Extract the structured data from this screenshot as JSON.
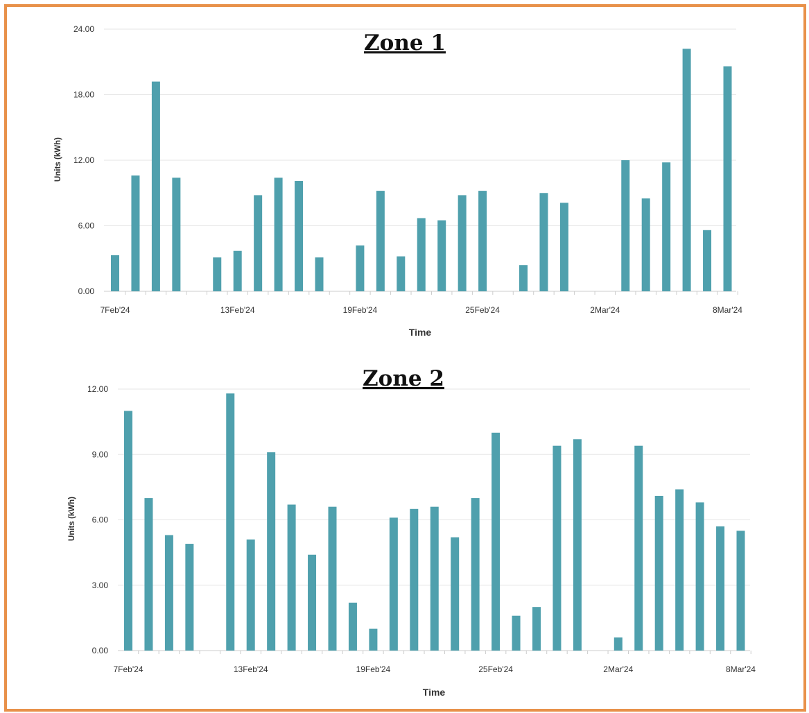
{
  "colors": {
    "bar": "#4fa0ad",
    "grid": "#e6e6e6",
    "frame": "#e8914a"
  },
  "chart_data": [
    {
      "type": "bar",
      "title": "Zone 1",
      "xlabel": "Time",
      "ylabel": "Units (kWh)",
      "ylim": [
        0,
        24
      ],
      "yticks": [
        "0.00",
        "6.00",
        "12.00",
        "18.00",
        "24.00"
      ],
      "xtick_labels": [
        "7Feb'24",
        "13Feb'24",
        "19Feb'24",
        "25Feb'24",
        "2Mar'24",
        "8Mar'24"
      ],
      "grid": true,
      "categories": [
        "7Feb'24",
        "8Feb'24",
        "9Feb'24",
        "10Feb'24",
        "11Feb'24",
        "12Feb'24",
        "13Feb'24",
        "14Feb'24",
        "15Feb'24",
        "16Feb'24",
        "17Feb'24",
        "18Feb'24",
        "19Feb'24",
        "20Feb'24",
        "21Feb'24",
        "22Feb'24",
        "23Feb'24",
        "24Feb'24",
        "25Feb'24",
        "26Feb'24",
        "27Feb'24",
        "28Feb'24",
        "29Feb'24",
        "1Mar'24",
        "2Mar'24",
        "3Mar'24",
        "4Mar'24",
        "5Mar'24",
        "6Mar'24",
        "7Mar'24",
        "8Mar'24"
      ],
      "values": [
        3.3,
        10.6,
        19.2,
        10.4,
        0,
        3.1,
        3.7,
        8.8,
        10.4,
        10.1,
        3.1,
        0,
        4.2,
        9.2,
        3.2,
        6.7,
        6.5,
        8.8,
        9.2,
        0,
        2.4,
        9.0,
        8.1,
        0,
        0,
        12.0,
        8.5,
        11.8,
        22.2,
        5.6,
        20.6
      ]
    },
    {
      "type": "bar",
      "title": "Zone 2",
      "xlabel": "Time",
      "ylabel": "Units (kWh)",
      "ylim": [
        0,
        12
      ],
      "yticks": [
        "0.00",
        "3.00",
        "6.00",
        "9.00",
        "12.00"
      ],
      "xtick_labels": [
        "7Feb'24",
        "13Feb'24",
        "19Feb'24",
        "25Feb'24",
        "2Mar'24",
        "8Mar'24"
      ],
      "grid": true,
      "categories": [
        "7Feb'24",
        "8Feb'24",
        "9Feb'24",
        "10Feb'24",
        "11Feb'24",
        "12Feb'24",
        "13Feb'24",
        "14Feb'24",
        "15Feb'24",
        "16Feb'24",
        "17Feb'24",
        "18Feb'24",
        "19Feb'24",
        "20Feb'24",
        "21Feb'24",
        "22Feb'24",
        "23Feb'24",
        "24Feb'24",
        "25Feb'24",
        "26Feb'24",
        "27Feb'24",
        "28Feb'24",
        "29Feb'24",
        "1Mar'24",
        "2Mar'24",
        "3Mar'24",
        "4Mar'24",
        "5Mar'24",
        "6Mar'24",
        "7Mar'24",
        "8Mar'24"
      ],
      "values": [
        11.0,
        7.0,
        5.3,
        4.9,
        0,
        11.8,
        5.1,
        9.1,
        6.7,
        4.4,
        6.6,
        2.2,
        1.0,
        6.1,
        6.5,
        6.6,
        5.2,
        7.0,
        10.0,
        1.6,
        2.0,
        9.4,
        9.7,
        0,
        0.6,
        9.4,
        7.1,
        7.4,
        6.8,
        5.7,
        5.5
      ]
    }
  ]
}
